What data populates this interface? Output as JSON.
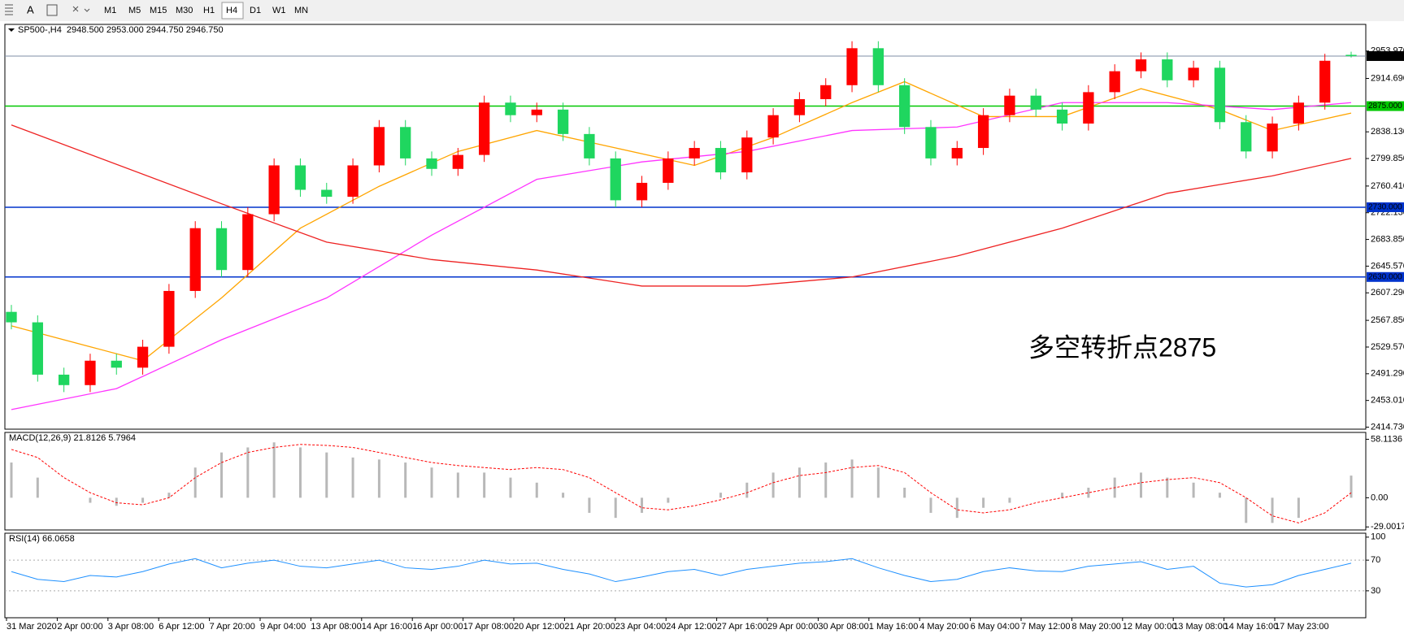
{
  "toolbar": {
    "timeframes": [
      "M1",
      "M5",
      "M15",
      "M30",
      "H1",
      "H4",
      "D1",
      "W1",
      "MN"
    ],
    "active": 5
  },
  "chart_data": [
    {
      "type": "candlestick",
      "title": "SP500-,H4  2948.500 2953.000 2944.750 2946.750",
      "open": [
        2580,
        2565,
        2490,
        2475,
        2510,
        2500,
        2530,
        2610,
        2700,
        2640,
        2720,
        2790,
        2755,
        2745,
        2790,
        2845,
        2800,
        2785,
        2805,
        2880,
        2862,
        2870,
        2835,
        2800,
        2740,
        2765,
        2800,
        2815,
        2780,
        2830,
        2862,
        2885,
        2905,
        2958,
        2905,
        2845,
        2800,
        2815,
        2862,
        2890,
        2870,
        2850,
        2895,
        2925,
        2942,
        2912,
        2930,
        2852,
        2810,
        2850,
        2880,
        2948.5
      ],
      "high": [
        2590,
        2575,
        2500,
        2520,
        2520,
        2540,
        2620,
        2710,
        2710,
        2730,
        2800,
        2800,
        2765,
        2800,
        2855,
        2855,
        2810,
        2815,
        2890,
        2890,
        2880,
        2880,
        2845,
        2810,
        2775,
        2810,
        2825,
        2825,
        2840,
        2872,
        2895,
        2915,
        2968,
        2968,
        2915,
        2855,
        2825,
        2872,
        2900,
        2900,
        2880,
        2905,
        2935,
        2952,
        2952,
        2940,
        2940,
        2862,
        2860,
        2890,
        2950,
        2953
      ],
      "low": [
        2555,
        2480,
        2465,
        2465,
        2490,
        2490,
        2520,
        2600,
        2630,
        2630,
        2710,
        2745,
        2735,
        2735,
        2780,
        2790,
        2775,
        2775,
        2795,
        2852,
        2852,
        2825,
        2790,
        2730,
        2730,
        2755,
        2790,
        2770,
        2770,
        2820,
        2852,
        2875,
        2895,
        2895,
        2835,
        2790,
        2790,
        2805,
        2852,
        2860,
        2840,
        2840,
        2885,
        2915,
        2902,
        2902,
        2842,
        2800,
        2800,
        2840,
        2870,
        2944.75
      ],
      "close": [
        2565,
        2490,
        2475,
        2510,
        2500,
        2530,
        2610,
        2700,
        2640,
        2720,
        2790,
        2755,
        2745,
        2790,
        2845,
        2800,
        2785,
        2805,
        2880,
        2862,
        2870,
        2835,
        2800,
        2740,
        2765,
        2800,
        2815,
        2780,
        2830,
        2862,
        2885,
        2905,
        2958,
        2905,
        2845,
        2800,
        2815,
        2862,
        2890,
        2870,
        2850,
        2895,
        2925,
        2942,
        2912,
        2930,
        2852,
        2810,
        2850,
        2880,
        2940,
        2946.75
      ],
      "up_color": "#ff0000",
      "down_color": "#1fd65f",
      "ylim": [
        2413,
        2991
      ],
      "yticks": [
        {
          "value": 2953.97,
          "label": "2953.970"
        },
        {
          "value": 2914.69,
          "label": "2914.690"
        },
        {
          "value": 2838.13,
          "label": "2838.130"
        },
        {
          "value": 2799.85,
          "label": "2799.850"
        },
        {
          "value": 2760.41,
          "label": "2760.410"
        },
        {
          "value": 2722.13,
          "label": "2722.130"
        },
        {
          "value": 2683.85,
          "label": "2683.850"
        },
        {
          "value": 2645.57,
          "label": "2645.570"
        },
        {
          "value": 2607.29,
          "label": "2607.290"
        },
        {
          "value": 2567.85,
          "label": "2567.850"
        },
        {
          "value": 2529.57,
          "label": "2529.570"
        },
        {
          "value": 2491.29,
          "label": "2491.290"
        },
        {
          "value": 2453.01,
          "label": "2453.010"
        },
        {
          "value": 2414.73,
          "label": "2414.730"
        }
      ],
      "levels": [
        {
          "value": 2946.75,
          "label": "2946.750",
          "color": "#7f8fa6",
          "label_color": "#000000"
        },
        {
          "value": 2875,
          "label": "2875.000",
          "color": "#00c800",
          "label_color": "#00c800"
        },
        {
          "value": 2730,
          "label": "2730.000",
          "color": "#0033cc",
          "label_color": "#0033cc"
        },
        {
          "value": 2630,
          "label": "2630.000",
          "color": "#0033cc",
          "label_color": "#0033cc"
        }
      ],
      "lines": [
        {
          "color": "#ffa500",
          "x": [
            0,
            3,
            5,
            8,
            11,
            14,
            17,
            20,
            23,
            26,
            29,
            32,
            34,
            37,
            40,
            43,
            46,
            48,
            51
          ],
          "values": [
            2560,
            2530,
            2510,
            2600,
            2700,
            2760,
            2810,
            2840,
            2815,
            2790,
            2830,
            2880,
            2910,
            2860,
            2860,
            2900,
            2870,
            2840,
            2865
          ]
        },
        {
          "color": "#ff33ff",
          "x": [
            0,
            4,
            8,
            12,
            16,
            20,
            24,
            28,
            32,
            36,
            40,
            44,
            48,
            51
          ],
          "values": [
            2440,
            2470,
            2540,
            2600,
            2690,
            2770,
            2795,
            2810,
            2840,
            2845,
            2880,
            2880,
            2870,
            2880
          ]
        },
        {
          "color": "#ee2222",
          "x": [
            0,
            8,
            12,
            16,
            20,
            24,
            28,
            32,
            36,
            40,
            44,
            48,
            51
          ],
          "values": [
            2848,
            2735,
            2680,
            2655,
            2640,
            2617,
            2617,
            2630,
            2660,
            2700,
            2750,
            2775,
            2800
          ]
        }
      ],
      "annotation": "多空转折点2875",
      "annotation_color": "#ff0000",
      "time_labels": [
        "31 Mar 2020",
        "2 Apr 00:00",
        "3 Apr 08:00",
        "6 Apr 12:00",
        "7 Apr 20:00",
        "9 Apr 04:00",
        "13 Apr 08:00",
        "14 Apr 16:00",
        "16 Apr 00:00",
        "17 Apr 08:00",
        "20 Apr 12:00",
        "21 Apr 20:00",
        "23 Apr 04:00",
        "24 Apr 12:00",
        "27 Apr 16:00",
        "29 Apr 00:00",
        "30 Apr 08:00",
        "1 May 16:00",
        "4 May 20:00",
        "6 May 04:00",
        "7 May 12:00",
        "8 May 20:00",
        "12 May 00:00",
        "13 May 08:00",
        "14 May 16:00",
        "17 May 23:00"
      ]
    },
    {
      "type": "macd",
      "title": "MACD(12,26,9) 21.8126 5.7964",
      "histogram": [
        35,
        20,
        0,
        -5,
        -8,
        -5,
        5,
        30,
        45,
        50,
        55,
        50,
        45,
        40,
        38,
        35,
        30,
        25,
        25,
        20,
        15,
        5,
        -15,
        -20,
        -15,
        -5,
        0,
        5,
        15,
        25,
        30,
        35,
        38,
        30,
        10,
        -15,
        -20,
        -10,
        -5,
        0,
        5,
        10,
        20,
        25,
        20,
        15,
        5,
        -25,
        -25,
        -20,
        0,
        22
      ],
      "histogram_color": "#b8b8b8",
      "signal": [
        48,
        40,
        20,
        5,
        -5,
        -7,
        0,
        20,
        35,
        45,
        50,
        53,
        52,
        50,
        45,
        40,
        35,
        32,
        30,
        28,
        30,
        28,
        20,
        5,
        -10,
        -12,
        -8,
        -2,
        5,
        15,
        22,
        25,
        30,
        32,
        25,
        5,
        -12,
        -15,
        -12,
        -5,
        0,
        5,
        10,
        15,
        18,
        20,
        15,
        0,
        -18,
        -25,
        -15,
        5
      ],
      "signal_color": "#ff0000",
      "ylim": [
        -30.4,
        63.3
      ],
      "yticks": [
        58.1136,
        {
          "value": 0,
          "label": "0.00"
        },
        -29.0017
      ]
    },
    {
      "type": "rsi",
      "title": "RSI(14) 66.0658",
      "values": [
        55,
        45,
        42,
        50,
        48,
        55,
        65,
        72,
        60,
        66,
        70,
        62,
        60,
        65,
        70,
        60,
        58,
        62,
        70,
        65,
        66,
        58,
        52,
        42,
        48,
        55,
        58,
        50,
        58,
        62,
        66,
        68,
        72,
        60,
        50,
        42,
        45,
        55,
        60,
        56,
        55,
        62,
        65,
        68,
        58,
        62,
        40,
        35,
        38,
        50,
        58,
        66
      ],
      "color": "#1e90ff",
      "ylim": [
        -3,
        103
      ],
      "yticks": [
        100,
        70,
        30
      ],
      "levels": [
        70,
        30
      ]
    }
  ]
}
